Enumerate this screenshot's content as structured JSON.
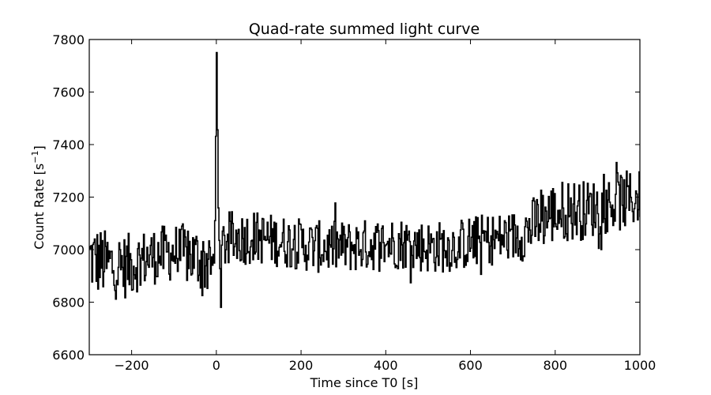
{
  "chart_data": {
    "type": "line",
    "title": "Quad-rate summed light curve",
    "xlabel": "Time since T0 [s]",
    "ylabel_main": "Count Rate [s",
    "ylabel_sup": "−1",
    "ylabel_end": "]",
    "xlim": [
      -300,
      1000
    ],
    "ylim": [
      6600,
      7800
    ],
    "xticks": [
      -200,
      0,
      200,
      400,
      600,
      800,
      1000
    ],
    "xtick_labels": [
      "−200",
      "0",
      "200",
      "400",
      "600",
      "800",
      "1000"
    ],
    "yticks": [
      6600,
      6800,
      7000,
      7200,
      7400,
      7600,
      7800
    ],
    "ytick_labels": [
      "6600",
      "6800",
      "7000",
      "7200",
      "7400",
      "7600",
      "7800"
    ],
    "grid": false,
    "line_color": "#000000",
    "step_seconds": 2,
    "series": [
      {
        "x": [
          -300,
          -280,
          -260,
          -240,
          -220,
          -200,
          -180,
          -160,
          -140,
          -120,
          -100,
          -80,
          -60,
          -40,
          -20,
          -5,
          0,
          5,
          10,
          20,
          40,
          60,
          80,
          100,
          120,
          140,
          160,
          180,
          200,
          220,
          240,
          260,
          280,
          300,
          320,
          340,
          360,
          380,
          400,
          420,
          440,
          460,
          480,
          500,
          520,
          540,
          560,
          580,
          600,
          620,
          640,
          660,
          680,
          700,
          720,
          740,
          760,
          780,
          800,
          820,
          840,
          860,
          880,
          900,
          920,
          940,
          960,
          980,
          1000
        ],
        "y": [
          6970,
          6955,
          6945,
          6940,
          6935,
          6945,
          6960,
          6970,
          6980,
          6985,
          6990,
          6985,
          6975,
          6965,
          6950,
          6950,
          7750,
          7020,
          6990,
          7030,
          7040,
          7045,
          7050,
          7045,
          7040,
          7035,
          7030,
          7025,
          7020,
          7015,
          7010,
          7010,
          7010,
          7010,
          7012,
          7015,
          7018,
          7020,
          7022,
          7025,
          7025,
          7020,
          7015,
          7010,
          7010,
          7012,
          7015,
          7020,
          7030,
          7035,
          7040,
          7040,
          7045,
          7050,
          7060,
          7080,
          7110,
          7130,
          7140,
          7150,
          7150,
          7150,
          7155,
          7160,
          7170,
          7180,
          7185,
          7190,
          7200
        ],
        "noise": [
          135,
          135,
          130,
          130,
          125,
          120,
          115,
          110,
          110,
          110,
          110,
          115,
          120,
          125,
          130,
          10,
          0,
          10,
          110,
          110,
          110,
          105,
          105,
          100,
          100,
          100,
          100,
          100,
          100,
          100,
          100,
          100,
          100,
          100,
          100,
          100,
          100,
          100,
          100,
          100,
          100,
          100,
          100,
          100,
          100,
          100,
          100,
          100,
          100,
          100,
          100,
          100,
          100,
          100,
          105,
          110,
          115,
          120,
          120,
          120,
          120,
          115,
          110,
          110,
          110,
          115,
          115,
          110,
          105
        ]
      }
    ]
  }
}
